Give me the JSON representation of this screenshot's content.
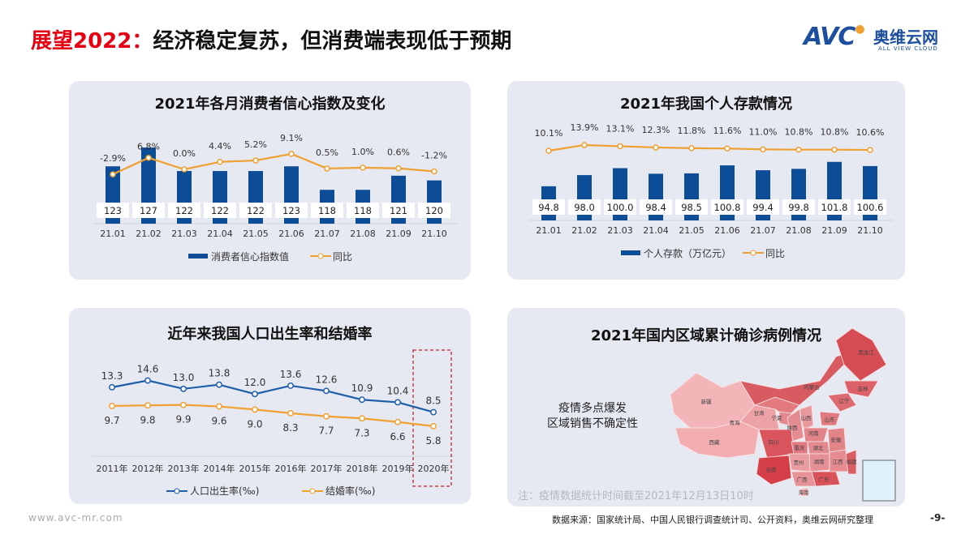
{
  "header": {
    "title_red": "展望2022：",
    "title_rest": "经济稳定复苏，但消费端表现低于预期"
  },
  "logo": {
    "mark": "AVC",
    "name": "奥维云网",
    "tagline": "ALL VIEW CLOUD"
  },
  "colors": {
    "bar": "#0d4c97",
    "line": "#f0a030",
    "line_blue": "#1f5ea8",
    "panel": "#e6e9f1",
    "accent": "#e60012"
  },
  "chart_data": [
    {
      "type": "bar",
      "title": "2021年各月消费者信心指数及变化",
      "categories": [
        "21.01",
        "21.02",
        "21.03",
        "21.04",
        "21.05",
        "21.06",
        "21.07",
        "21.08",
        "21.09",
        "21.10"
      ],
      "series": [
        {
          "name": "消费者信心指数值",
          "type": "bar",
          "values": [
            123,
            127,
            122,
            122,
            122,
            123,
            118,
            118,
            121,
            120
          ],
          "labels": [
            "123",
            "127",
            "122",
            "122",
            "122",
            "123",
            "118",
            "118",
            "121",
            "120"
          ]
        },
        {
          "name": "同比",
          "type": "line",
          "values": [
            -2.9,
            6.8,
            0.0,
            4.4,
            5.2,
            9.1,
            0.5,
            1.0,
            0.6,
            -1.2
          ],
          "labels": [
            "-2.9%",
            "6.8%",
            "0.0%",
            "4.4%",
            "5.2%",
            "9.1%",
            "0.5%",
            "1.0%",
            "0.6%",
            "-1.2%"
          ]
        }
      ],
      "legend": "bottom"
    },
    {
      "type": "bar",
      "title": "2021年我国个人存款情况",
      "categories": [
        "21.01",
        "21.02",
        "21.03",
        "21.04",
        "21.05",
        "21.06",
        "21.07",
        "21.08",
        "21.09",
        "21.10"
      ],
      "series": [
        {
          "name": "个人存款（万亿元）",
          "type": "bar",
          "values": [
            94.8,
            98.0,
            100.0,
            98.4,
            98.5,
            100.8,
            99.4,
            99.8,
            101.8,
            100.6
          ],
          "labels": [
            "94.8",
            "98.0",
            "100.0",
            "98.4",
            "98.5",
            "100.8",
            "99.4",
            "99.8",
            "101.8",
            "100.6"
          ]
        },
        {
          "name": "同比",
          "type": "line",
          "values": [
            10.1,
            13.9,
            13.1,
            12.3,
            11.8,
            11.6,
            11.0,
            10.8,
            10.8,
            10.6
          ],
          "labels": [
            "10.1%",
            "13.9%",
            "13.1%",
            "12.3%",
            "11.8%",
            "11.6%",
            "11.0%",
            "10.8%",
            "10.8%",
            "10.6%"
          ]
        }
      ],
      "legend": "bottom"
    },
    {
      "type": "line",
      "title": "近年来我国人口出生率和结婚率",
      "categories": [
        "2011年",
        "2012年",
        "2013年",
        "2014年",
        "2015年",
        "2016年",
        "2017年",
        "2018年",
        "2019年",
        "2020年"
      ],
      "series": [
        {
          "name": "人口出生率(‰)",
          "values": [
            13.3,
            14.6,
            13.0,
            13.8,
            12.0,
            13.6,
            12.6,
            10.9,
            10.4,
            8.5
          ],
          "labels": [
            "13.3",
            "14.6",
            "13.0",
            "13.8",
            "12.0",
            "13.6",
            "12.6",
            "10.9",
            "10.4",
            "8.5"
          ]
        },
        {
          "name": "结婚率(‰)",
          "values": [
            9.7,
            9.8,
            9.9,
            9.6,
            9.0,
            8.3,
            7.7,
            7.3,
            6.6,
            5.8
          ],
          "labels": [
            "9.7",
            "9.8",
            "9.9",
            "9.6",
            "9.0",
            "8.3",
            "7.7",
            "7.3",
            "6.6",
            "5.8"
          ]
        }
      ],
      "highlight": "2020年",
      "legend": "bottom"
    }
  ],
  "map": {
    "title": "2021年国内区域累计确诊病例情况",
    "callout": [
      "疫情多点爆发",
      "区域销售不确定性"
    ],
    "note": "注：疫情数据统计时间截至2021年12月13日10时",
    "regions": [
      "新疆",
      "西藏",
      "青海",
      "甘肃",
      "宁夏",
      "内蒙古",
      "黑龙江",
      "吉林",
      "辽宁",
      "山西",
      "陕西",
      "山东",
      "河南",
      "四川",
      "重庆",
      "湖北",
      "安徽",
      "湖南",
      "江西",
      "贵州",
      "云南",
      "广西",
      "广东",
      "福建",
      "台湾",
      "海南"
    ]
  },
  "footer": {
    "url": "www.avc-mr.com",
    "source": "数据来源：国家统计局、中国人民银行调查统计司、公开资料，奥维云网研究整理",
    "page": "-9-"
  }
}
